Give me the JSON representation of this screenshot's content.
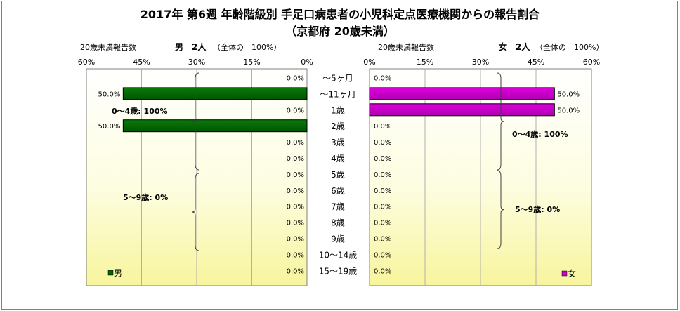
{
  "title": "2017年 第6週 年齢階級別 手足口病患者の小児科定点医療機関からの報告割合",
  "subtitle": "（京都府 20歳未満）",
  "chart_data": {
    "type": "bar",
    "categories": [
      "～5ヶ月",
      "～11ヶ月",
      "1歳",
      "2歳",
      "3歳",
      "4歳",
      "5歳",
      "6歳",
      "7歳",
      "8歳",
      "9歳",
      "10～14歳",
      "15～19歳"
    ],
    "male": {
      "caption_left": "20歳未満報告数",
      "caption_bold": "男　2人",
      "caption_right": "（全体の　100%）",
      "legend": "男",
      "color": "#006400",
      "values": [
        0,
        50,
        0,
        50,
        0,
        0,
        0,
        0,
        0,
        0,
        0,
        0,
        0
      ],
      "labels": [
        "0.0%",
        "50.0%",
        "0.0%",
        "50.0%",
        "0.0%",
        "0.0%",
        "0.0%",
        "0.0%",
        "0.0%",
        "0.0%",
        "0.0%",
        "0.0%",
        "0.0%"
      ],
      "xticks": [
        "60%",
        "45%",
        "30%",
        "15%",
        "0%"
      ],
      "group_labels": [
        "0～4歳: 100%",
        "5～9歳: 0%"
      ]
    },
    "female": {
      "caption_left": "20歳未満報告数",
      "caption_bold": "女　2人",
      "caption_right": "（全体の　100%）",
      "legend": "女",
      "color": "#cc00cc",
      "values": [
        0,
        50,
        50,
        0,
        0,
        0,
        0,
        0,
        0,
        0,
        0,
        0,
        0
      ],
      "labels": [
        "0.0%",
        "50.0%",
        "50.0%",
        "0.0%",
        "0.0%",
        "0.0%",
        "0.0%",
        "0.0%",
        "0.0%",
        "0.0%",
        "0.0%",
        "0.0%",
        "0.0%"
      ],
      "xticks": [
        "0%",
        "15%",
        "30%",
        "45%",
        "60%"
      ],
      "group_labels": [
        "0～4歳: 100%",
        "5～9歳: 0%"
      ]
    },
    "xlim": [
      0,
      60
    ],
    "grid": true
  }
}
